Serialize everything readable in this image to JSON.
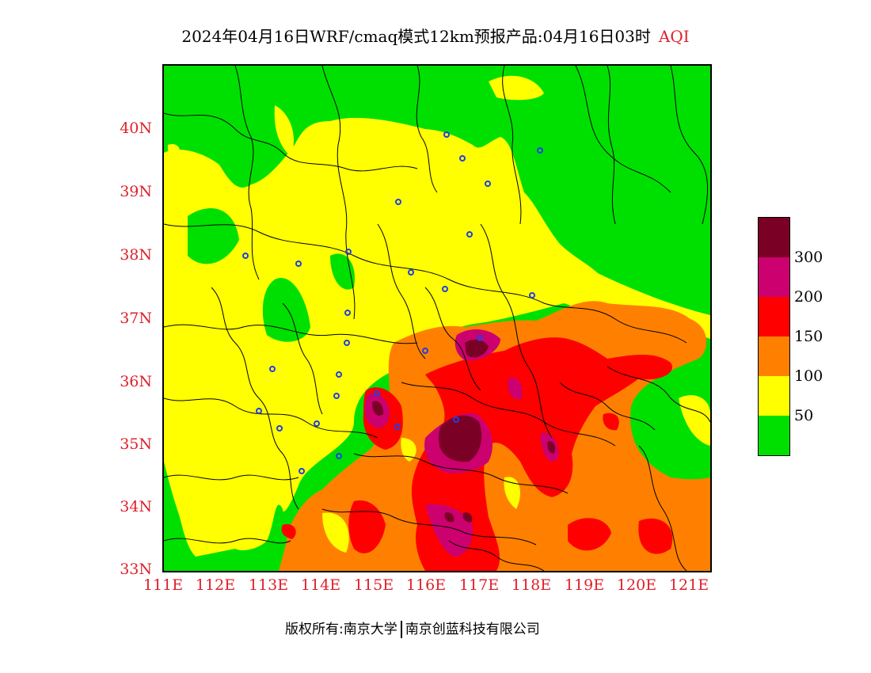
{
  "title": {
    "main": "2024年04月16日WRF/cmaq模式12km预报产品:04月16日03时",
    "variable": "AQI"
  },
  "lat_labels": [
    "40N",
    "39N",
    "38N",
    "37N",
    "36N",
    "35N",
    "34N",
    "33N"
  ],
  "lon_labels": [
    "111E",
    "112E",
    "113E",
    "114E",
    "115E",
    "116E",
    "117E",
    "118E",
    "119E",
    "120E",
    "121E"
  ],
  "legend": {
    "labels": [
      "300",
      "200",
      "150",
      "100",
      "50"
    ],
    "colors": [
      "#7a0025",
      "#cc006e",
      "#ff0000",
      "#ff8000",
      "#ffff00",
      "#00e000"
    ]
  },
  "map_colors": {
    "good": "#00e000",
    "moderate": "#ffff00",
    "usg": "#ff8000",
    "unhealthy": "#ff0000",
    "very_unhealthy": "#cc006e",
    "hazardous": "#7a0025",
    "station_marker": "#2040e0",
    "boundary": "#000000"
  },
  "footer": {
    "copyright": "版权所有:南京大学",
    "company": "南京创蓝科技有限公司"
  }
}
